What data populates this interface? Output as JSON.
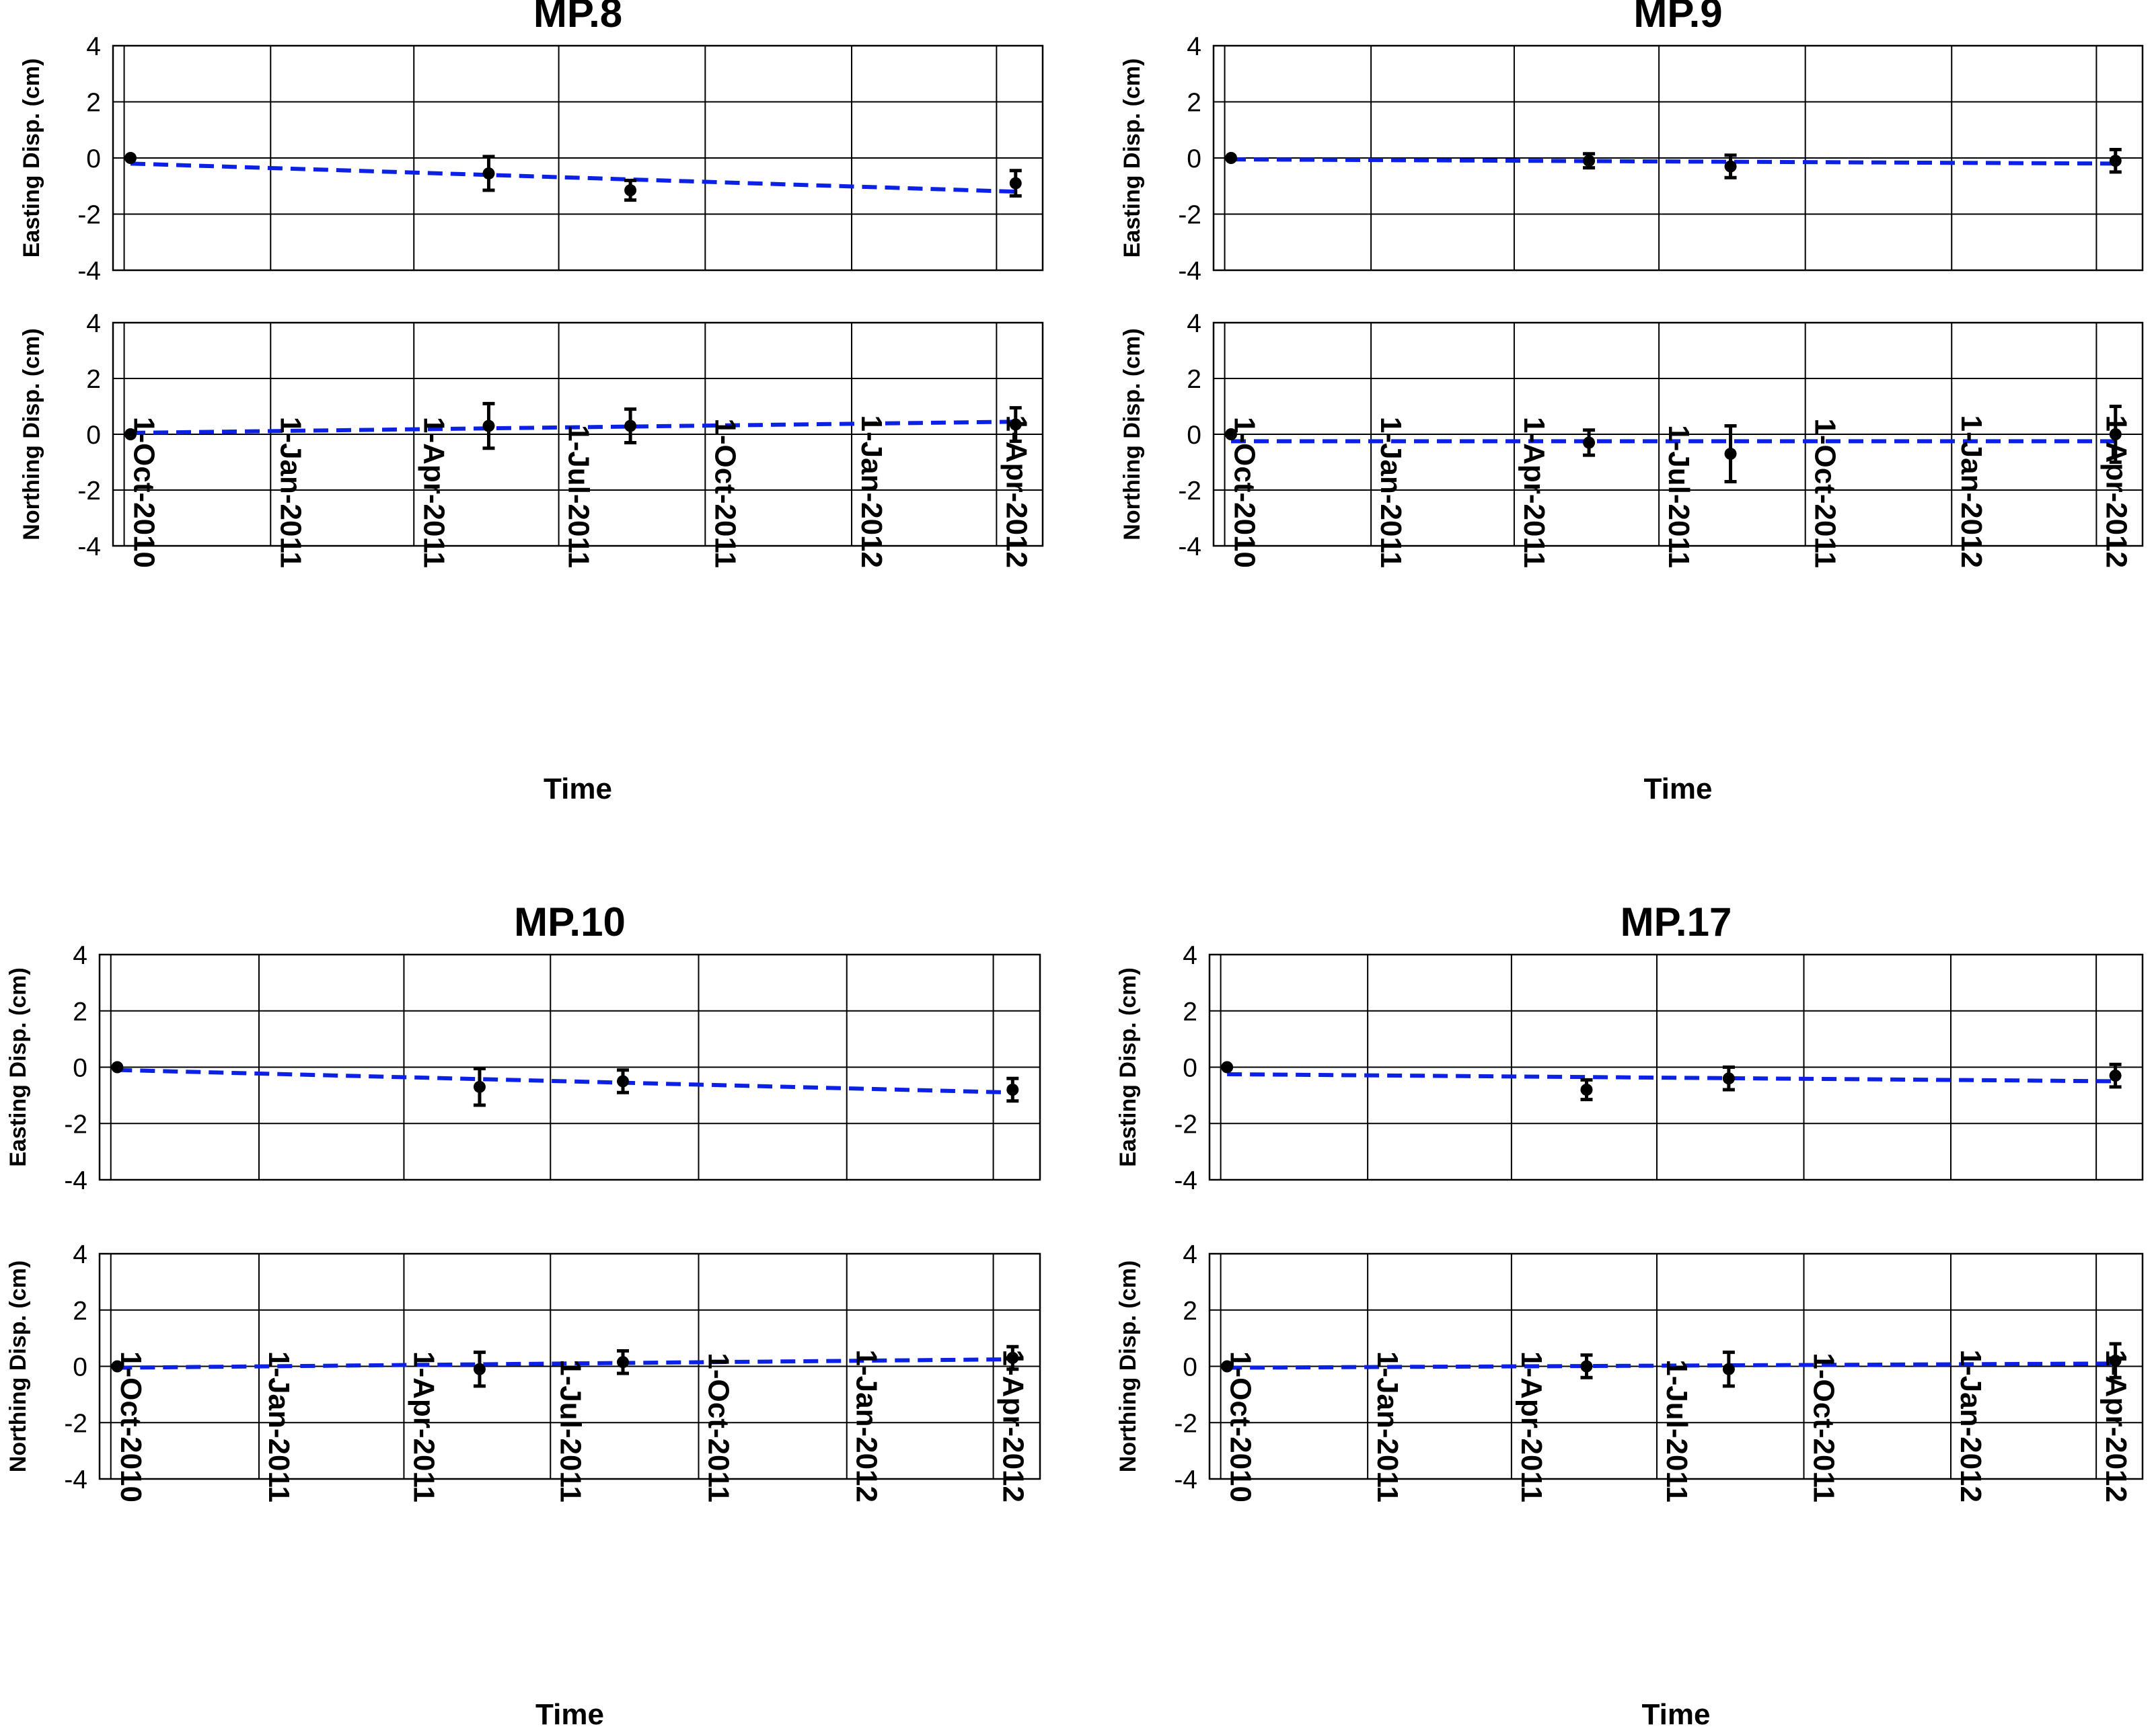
{
  "chart_data": [
    {
      "type": "scatter",
      "title": "MP.8",
      "xlabel": "Time",
      "x_ticks": [
        "1-Oct-2010",
        "1-Jan-2011",
        "1-Apr-2011",
        "1-Jul-2011",
        "1-Oct-2011",
        "1-Jan-2012",
        "1-Apr-2012"
      ],
      "x_range": [
        "2010-09-24",
        "2012-04-30"
      ],
      "subplots": [
        {
          "ylabel": "Easting Disp. (cm)",
          "ylim": [
            -4,
            4
          ],
          "y_ticks": [
            "4",
            "2",
            "0",
            "-2",
            "-4"
          ],
          "points": [
            {
              "date": "2010-10-05",
              "y": 0.0,
              "err": 0
            },
            {
              "date": "2011-05-18",
              "y": -0.55,
              "err": 0.6
            },
            {
              "date": "2011-08-15",
              "y": -1.15,
              "err": 0.35
            },
            {
              "date": "2012-04-13",
              "y": -0.9,
              "err": 0.45
            }
          ],
          "trend": {
            "start": {
              "date": "2010-10-05",
              "y": -0.2
            },
            "end": {
              "date": "2012-04-13",
              "y": -1.2
            }
          }
        },
        {
          "ylabel": "Northing Disp. (cm)",
          "ylim": [
            -4,
            4
          ],
          "y_ticks": [
            "4",
            "2",
            "0",
            "-2",
            "-4"
          ],
          "points": [
            {
              "date": "2010-10-05",
              "y": 0.0,
              "err": 0
            },
            {
              "date": "2011-05-18",
              "y": 0.3,
              "err": 0.8
            },
            {
              "date": "2011-08-15",
              "y": 0.3,
              "err": 0.6
            },
            {
              "date": "2012-04-13",
              "y": 0.35,
              "err": 0.6
            }
          ],
          "trend": {
            "start": {
              "date": "2010-10-05",
              "y": 0.05
            },
            "end": {
              "date": "2012-04-13",
              "y": 0.45
            }
          }
        }
      ]
    },
    {
      "type": "scatter",
      "title": "MP.9",
      "xlabel": "Time",
      "x_ticks": [
        "1-Oct-2010",
        "1-Jan-2011",
        "1-Apr-2011",
        "1-Jul-2011",
        "1-Oct-2011",
        "1-Jan-2012",
        "1-Apr-2012"
      ],
      "x_range": [
        "2010-09-24",
        "2012-04-30"
      ],
      "subplots": [
        {
          "ylabel": "Easting Disp. (cm)",
          "ylim": [
            -4,
            4
          ],
          "y_ticks": [
            "4",
            "2",
            "0",
            "-2",
            "-4"
          ],
          "points": [
            {
              "date": "2010-10-05",
              "y": 0.0,
              "err": 0
            },
            {
              "date": "2011-05-18",
              "y": -0.1,
              "err": 0.25
            },
            {
              "date": "2011-08-15",
              "y": -0.3,
              "err": 0.4
            },
            {
              "date": "2012-04-13",
              "y": -0.1,
              "err": 0.4
            }
          ],
          "trend": {
            "start": {
              "date": "2010-10-05",
              "y": -0.05
            },
            "end": {
              "date": "2012-04-13",
              "y": -0.2
            }
          }
        },
        {
          "ylabel": "Northing Disp. (cm)",
          "ylim": [
            -4,
            4
          ],
          "y_ticks": [
            "4",
            "2",
            "0",
            "-2",
            "-4"
          ],
          "points": [
            {
              "date": "2010-10-05",
              "y": 0.0,
              "err": 0
            },
            {
              "date": "2011-05-18",
              "y": -0.3,
              "err": 0.45
            },
            {
              "date": "2011-08-15",
              "y": -0.7,
              "err": 1.0
            },
            {
              "date": "2012-04-13",
              "y": 0.0,
              "err": 1.0
            }
          ],
          "trend": {
            "start": {
              "date": "2010-10-05",
              "y": -0.25
            },
            "end": {
              "date": "2012-04-13",
              "y": -0.25
            }
          }
        }
      ]
    },
    {
      "type": "scatter",
      "title": "MP.10",
      "xlabel": "Time",
      "x_ticks": [
        "1-Oct-2010",
        "1-Jan-2011",
        "1-Apr-2011",
        "1-Jul-2011",
        "1-Oct-2011",
        "1-Jan-2012",
        "1-Apr-2012"
      ],
      "x_range": [
        "2010-09-24",
        "2012-04-30"
      ],
      "subplots": [
        {
          "ylabel": "Easting Disp. (cm)",
          "ylim": [
            -4,
            4
          ],
          "y_ticks": [
            "4",
            "2",
            "0",
            "-2",
            "-4"
          ],
          "points": [
            {
              "date": "2010-10-05",
              "y": 0.0,
              "err": 0
            },
            {
              "date": "2011-05-18",
              "y": -0.7,
              "err": 0.65
            },
            {
              "date": "2011-08-15",
              "y": -0.5,
              "err": 0.4
            },
            {
              "date": "2012-04-13",
              "y": -0.8,
              "err": 0.4
            }
          ],
          "trend": {
            "start": {
              "date": "2010-10-05",
              "y": -0.1
            },
            "end": {
              "date": "2012-04-13",
              "y": -0.9
            }
          }
        },
        {
          "ylabel": "Northing Disp. (cm)",
          "ylim": [
            -4,
            4
          ],
          "y_ticks": [
            "4",
            "2",
            "0",
            "-2",
            "-4"
          ],
          "points": [
            {
              "date": "2010-10-05",
              "y": 0.0,
              "err": 0
            },
            {
              "date": "2011-05-18",
              "y": -0.1,
              "err": 0.6
            },
            {
              "date": "2011-08-15",
              "y": 0.15,
              "err": 0.4
            },
            {
              "date": "2012-04-13",
              "y": 0.3,
              "err": 0.4
            }
          ],
          "trend": {
            "start": {
              "date": "2010-10-05",
              "y": -0.05
            },
            "end": {
              "date": "2012-04-13",
              "y": 0.25
            }
          }
        }
      ]
    },
    {
      "type": "scatter",
      "title": "MP.17",
      "xlabel": "Time",
      "x_ticks": [
        "1-Oct-2010",
        "1-Jan-2011",
        "1-Apr-2011",
        "1-Jul-2011",
        "1-Oct-2011",
        "1-Jan-2012",
        "1-Apr-2012"
      ],
      "x_range": [
        "2010-09-24",
        "2012-04-30"
      ],
      "subplots": [
        {
          "ylabel": "Easting Disp. (cm)",
          "ylim": [
            -4,
            4
          ],
          "y_ticks": [
            "4",
            "2",
            "0",
            "-2",
            "-4"
          ],
          "points": [
            {
              "date": "2010-10-05",
              "y": 0.0,
              "err": 0
            },
            {
              "date": "2011-05-18",
              "y": -0.8,
              "err": 0.35
            },
            {
              "date": "2011-08-15",
              "y": -0.4,
              "err": 0.4
            },
            {
              "date": "2012-04-13",
              "y": -0.3,
              "err": 0.4
            }
          ],
          "trend": {
            "start": {
              "date": "2010-10-05",
              "y": -0.25
            },
            "end": {
              "date": "2012-04-13",
              "y": -0.5
            }
          }
        },
        {
          "ylabel": "Northing Disp. (cm)",
          "ylim": [
            -4,
            4
          ],
          "y_ticks": [
            "4",
            "2",
            "0",
            "-2",
            "-4"
          ],
          "points": [
            {
              "date": "2010-10-05",
              "y": 0.0,
              "err": 0
            },
            {
              "date": "2011-05-18",
              "y": 0.0,
              "err": 0.4
            },
            {
              "date": "2011-08-15",
              "y": -0.1,
              "err": 0.6
            },
            {
              "date": "2012-04-13",
              "y": 0.2,
              "err": 0.6
            }
          ],
          "trend": {
            "start": {
              "date": "2010-10-05",
              "y": -0.05
            },
            "end": {
              "date": "2012-04-13",
              "y": 0.1
            }
          }
        }
      ]
    }
  ]
}
